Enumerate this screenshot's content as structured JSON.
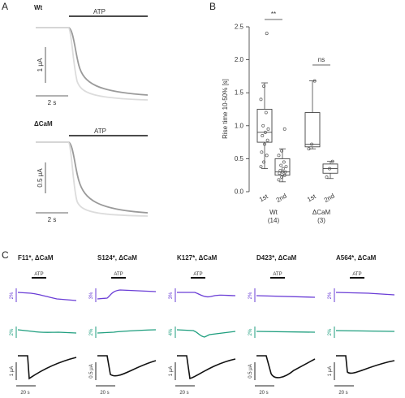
{
  "panels": {
    "a": "A",
    "b": "B",
    "c": "C"
  },
  "panel_a": {
    "wt_label": "Wt",
    "dcam_label": "ΔCaM",
    "stim_label": "ATP",
    "wt_scale_current": "1 μA",
    "wt_scale_time": "2 s",
    "dcam_scale_current": "0.5 μA",
    "dcam_scale_time": "2 s"
  },
  "chart_data": {
    "type": "box",
    "ylabel": "Rise time 10-50% [s]",
    "ylim": [
      0,
      2.5
    ],
    "yticks": [
      "0.0",
      "0.5",
      "1.0",
      "1.5",
      "2.0",
      "2.5"
    ],
    "groups": [
      {
        "label": "Wt",
        "n": "(14)",
        "significance": "**",
        "boxes": [
          {
            "label": "1st",
            "stats": {
              "min": 0.35,
              "q1": 0.75,
              "median": 0.9,
              "q3": 1.25,
              "max": 1.65
            }
          },
          {
            "label": "2nd",
            "stats": {
              "min": 0.15,
              "q1": 0.25,
              "median": 0.3,
              "q3": 0.5,
              "max": 0.65
            }
          }
        ]
      },
      {
        "label": "ΔCaM",
        "n": "(3)",
        "significance": "ns",
        "boxes": [
          {
            "label": "1st",
            "stats": {
              "min": 0.65,
              "q1": 0.68,
              "median": 0.72,
              "q3": 1.2,
              "max": 1.68
            }
          },
          {
            "label": "2nd",
            "stats": {
              "min": 0.2,
              "q1": 0.28,
              "median": 0.35,
              "q3": 0.42,
              "max": 0.46
            }
          }
        ]
      }
    ],
    "points": [
      [
        [
          0.38,
          0.45,
          0.55,
          0.6,
          0.72,
          0.78,
          0.85,
          0.9,
          0.95,
          1.0,
          1.2,
          1.4,
          1.6,
          2.4
        ],
        [
          0.18,
          0.22,
          0.25,
          0.28,
          0.3,
          0.3,
          0.32,
          0.35,
          0.38,
          0.4,
          0.45,
          0.55,
          0.62,
          0.95
        ]
      ],
      [
        [
          0.65,
          0.72,
          1.68
        ],
        [
          0.22,
          0.35,
          0.46
        ]
      ]
    ]
  },
  "panel_c": {
    "stim_label": "ATP",
    "time_scale": "20 s",
    "mutants": [
      {
        "title": "F11*, ΔCaM",
        "fl1": "2%",
        "fl2": "2%",
        "current": "1 μA"
      },
      {
        "title": "S124*, ΔCaM",
        "fl1": "3%",
        "fl2": "2%",
        "current": "0.5 μA"
      },
      {
        "title": "K127*, ΔCaM",
        "fl1": "3%",
        "fl2": "4%",
        "current": "1 μA"
      },
      {
        "title": "D423*, ΔCaM",
        "fl1": "2%",
        "fl2": "2%",
        "current": "0.5 μA"
      },
      {
        "title": "A564*, ΔCaM",
        "fl1": "2%",
        "fl2": "2%",
        "current": "1 μA"
      }
    ]
  }
}
